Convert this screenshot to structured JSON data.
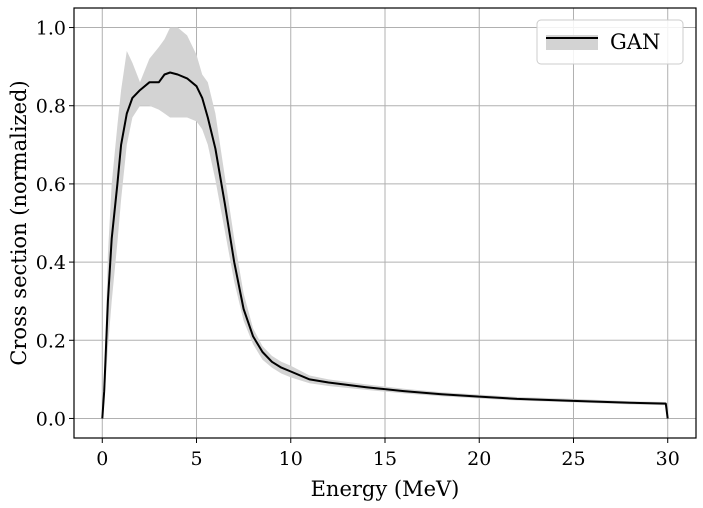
{
  "chart_data": {
    "type": "line",
    "title": "",
    "xlabel": "Energy (MeV)",
    "ylabel": "Cross section (normalized)",
    "xlim": [
      -1.5,
      31.5
    ],
    "ylim": [
      -0.05,
      1.05
    ],
    "xticks": [
      0,
      5,
      10,
      15,
      20,
      25,
      30
    ],
    "yticks": [
      0.0,
      0.2,
      0.4,
      0.6,
      0.8,
      1.0
    ],
    "xtick_labels": [
      "0",
      "5",
      "10",
      "15",
      "20",
      "25",
      "30"
    ],
    "ytick_labels": [
      "0.0",
      "0.2",
      "0.4",
      "0.6",
      "0.8",
      "1.0"
    ],
    "grid": true,
    "legend": {
      "position": "top-right",
      "entries": [
        "GAN"
      ]
    },
    "series": [
      {
        "name": "GAN",
        "color": "#000000",
        "band_color": "#d3d3d3",
        "x": [
          0.0,
          0.1,
          0.3,
          0.5,
          0.8,
          1.0,
          1.3,
          1.6,
          2.0,
          2.5,
          3.0,
          3.3,
          3.6,
          4.0,
          4.5,
          5.0,
          5.3,
          5.6,
          6.0,
          6.5,
          7.0,
          7.5,
          8.0,
          8.5,
          9.0,
          9.5,
          10.0,
          11.0,
          12.0,
          14.0,
          16.0,
          18.0,
          20.0,
          22.0,
          25.0,
          28.0,
          29.9,
          30.0
        ],
        "mean": [
          0.0,
          0.07,
          0.3,
          0.46,
          0.6,
          0.7,
          0.78,
          0.82,
          0.84,
          0.86,
          0.86,
          0.88,
          0.885,
          0.88,
          0.87,
          0.85,
          0.82,
          0.77,
          0.69,
          0.55,
          0.4,
          0.28,
          0.21,
          0.17,
          0.145,
          0.13,
          0.12,
          0.1,
          0.092,
          0.08,
          0.07,
          0.062,
          0.056,
          0.05,
          0.045,
          0.04,
          0.038,
          0.0
        ],
        "lower": [
          0.0,
          0.04,
          0.18,
          0.3,
          0.45,
          0.56,
          0.7,
          0.77,
          0.8,
          0.8,
          0.79,
          0.78,
          0.77,
          0.77,
          0.77,
          0.76,
          0.74,
          0.7,
          0.61,
          0.48,
          0.35,
          0.25,
          0.19,
          0.15,
          0.13,
          0.115,
          0.105,
          0.09,
          0.083,
          0.073,
          0.064,
          0.057,
          0.051,
          0.046,
          0.041,
          0.036,
          0.034,
          0.0
        ],
        "upper": [
          0.0,
          0.1,
          0.42,
          0.6,
          0.75,
          0.84,
          0.94,
          0.91,
          0.86,
          0.92,
          0.95,
          0.97,
          1.0,
          1.0,
          0.98,
          0.93,
          0.88,
          0.86,
          0.78,
          0.62,
          0.46,
          0.32,
          0.23,
          0.185,
          0.16,
          0.145,
          0.135,
          0.11,
          0.1,
          0.087,
          0.076,
          0.067,
          0.061,
          0.055,
          0.05,
          0.044,
          0.042,
          0.0
        ]
      }
    ]
  }
}
